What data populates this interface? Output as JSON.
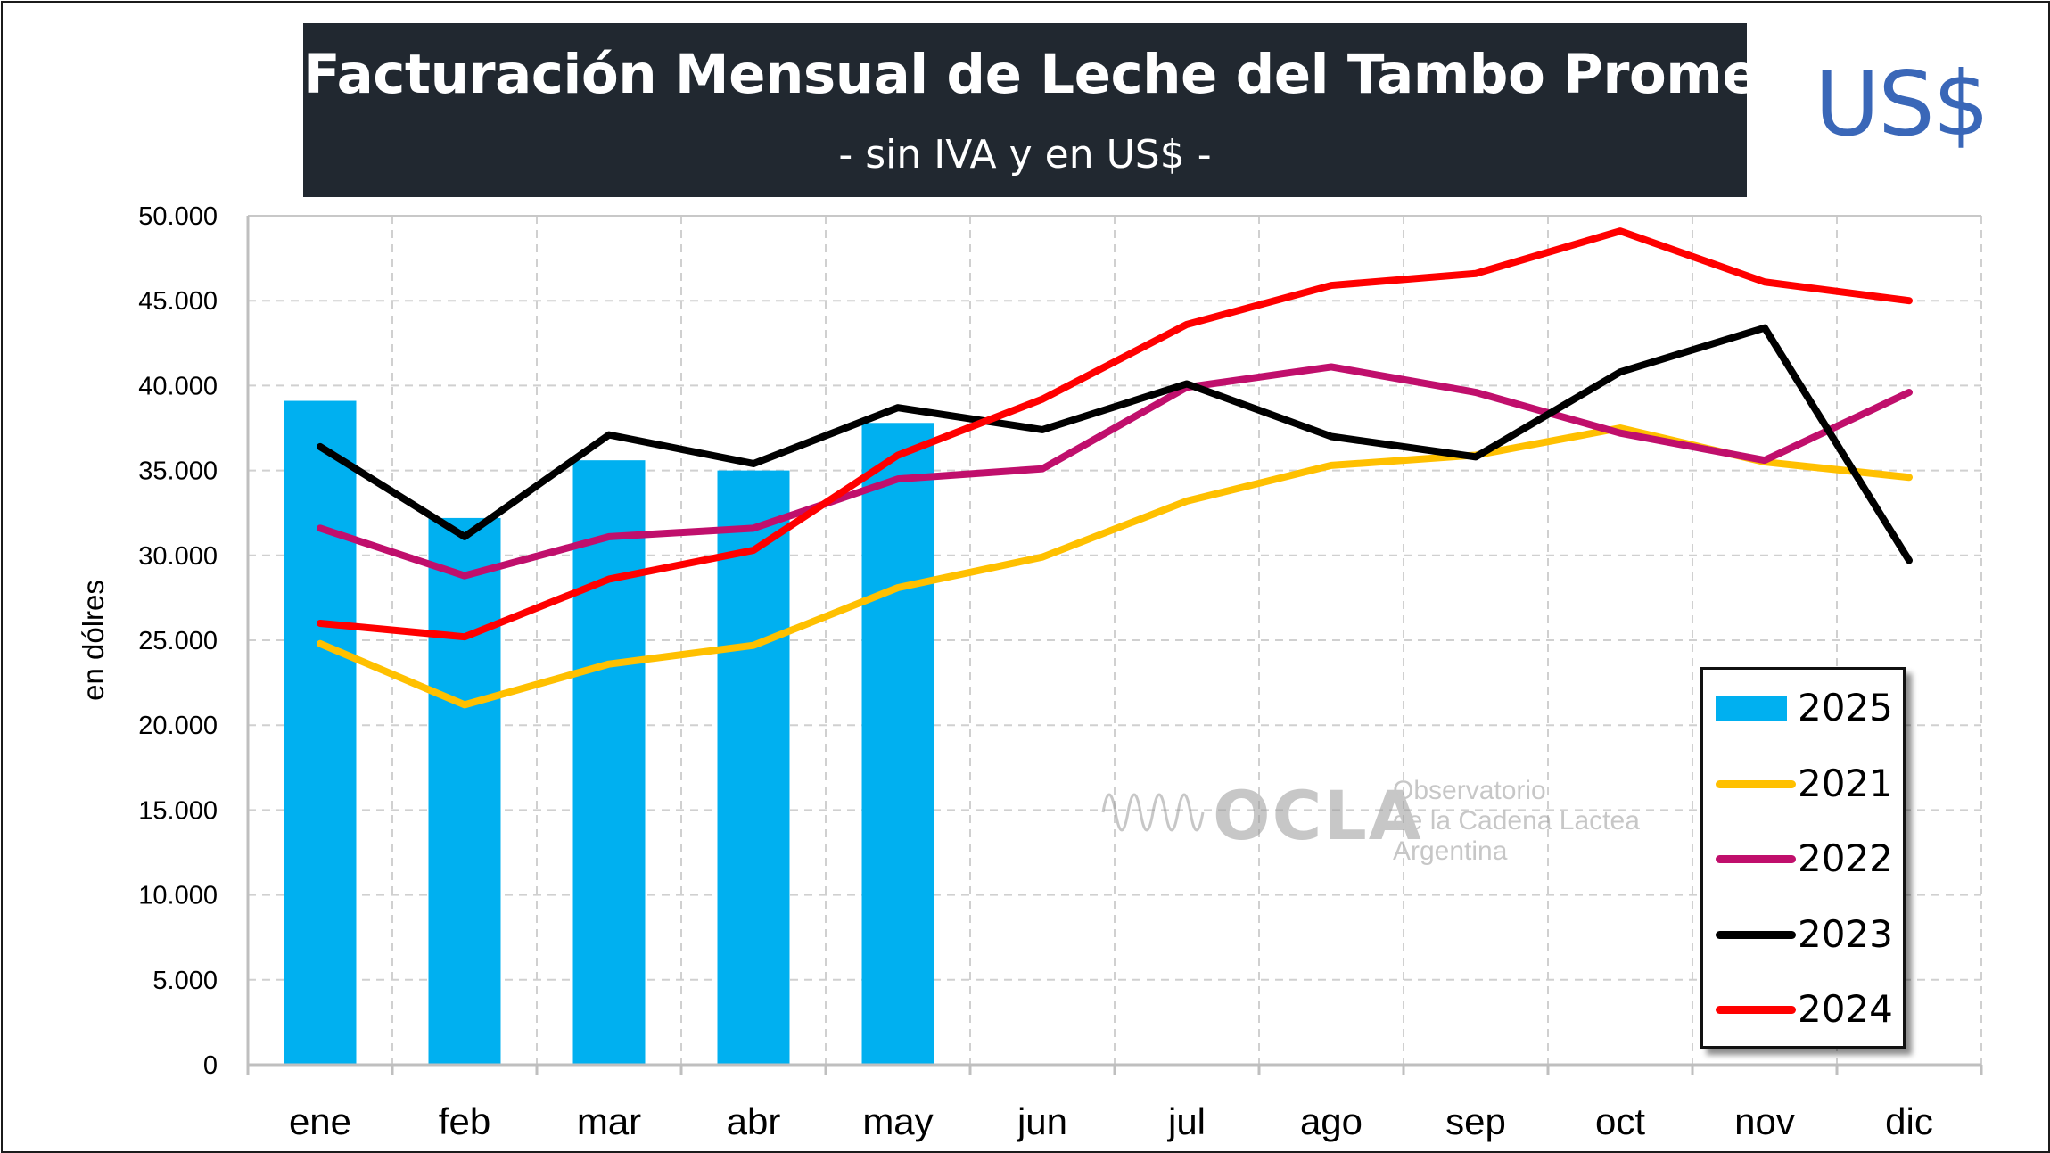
{
  "title": "Facturación Mensual de Leche del Tambo Promedio",
  "subtitle": "- sin IVA y en US$ -",
  "currency_badge": "US$",
  "watermark": {
    "logo": "OCLA",
    "name_line1": "Observatorio",
    "name_line2": "de la Cadena Lactea",
    "name_line3": "Argentina"
  },
  "chart_data": {
    "type": "bar",
    "title": "Facturación Mensual de Leche del Tambo Promedio",
    "subtitle": "- sin IVA y en US$ -",
    "xlabel": "",
    "ylabel": "en dólres",
    "categories": [
      "ene",
      "feb",
      "mar",
      "abr",
      "may",
      "jun",
      "jul",
      "ago",
      "sep",
      "oct",
      "nov",
      "dic"
    ],
    "ylim": [
      0,
      50000
    ],
    "yticks": [
      0,
      5000,
      10000,
      15000,
      20000,
      25000,
      30000,
      35000,
      40000,
      45000,
      50000
    ],
    "ytick_labels": [
      "0",
      "5.000",
      "10.000",
      "15.000",
      "20.000",
      "25.000",
      "30.000",
      "35.000",
      "40.000",
      "45.000",
      "50.000"
    ],
    "grid": true,
    "legend_position": "bottom-right",
    "series": [
      {
        "name": "2025",
        "type": "bar",
        "color": "#00b0f0",
        "values": [
          39100,
          32200,
          35600,
          35000,
          37800,
          null,
          null,
          null,
          null,
          null,
          null,
          null
        ]
      },
      {
        "name": "2021",
        "type": "line",
        "color": "#ffc000",
        "values": [
          24800,
          21200,
          23600,
          24700,
          28100,
          29900,
          33200,
          35300,
          35900,
          37500,
          35500,
          34600
        ]
      },
      {
        "name": "2022",
        "type": "line",
        "color": "#c00f6c",
        "values": [
          31600,
          28800,
          31100,
          31600,
          34500,
          35100,
          39900,
          41100,
          39600,
          37200,
          35600,
          39600
        ]
      },
      {
        "name": "2023",
        "type": "line",
        "color": "#000000",
        "values": [
          36400,
          31100,
          37100,
          35400,
          38700,
          37400,
          40100,
          37000,
          35800,
          40800,
          43400,
          29700
        ]
      },
      {
        "name": "2024",
        "type": "line",
        "color": "#ff0000",
        "values": [
          26000,
          25200,
          28600,
          30300,
          35900,
          39200,
          43600,
          45900,
          46600,
          49100,
          46100,
          45000
        ]
      }
    ]
  }
}
